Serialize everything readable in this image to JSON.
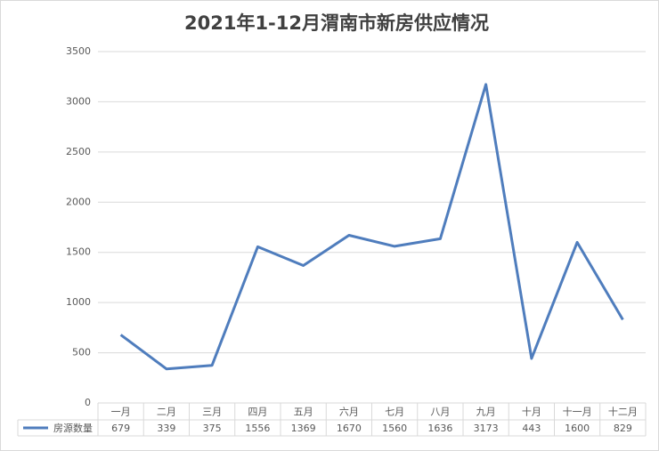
{
  "chart_data": {
    "type": "line",
    "title": "2021年1-12月渭南市新房供应情况",
    "categories": [
      "一月",
      "二月",
      "三月",
      "四月",
      "五月",
      "六月",
      "七月",
      "八月",
      "九月",
      "十月",
      "十一月",
      "十二月"
    ],
    "series": [
      {
        "name": "房源数量",
        "color": "#4f7dbd",
        "values": [
          679,
          339,
          375,
          1556,
          1369,
          1670,
          1560,
          1636,
          3173,
          443,
          1600,
          829
        ]
      }
    ],
    "ylim": [
      0,
      3500
    ],
    "yticks": [
      0,
      500,
      1000,
      1500,
      2000,
      2500,
      3000,
      3500
    ],
    "grid": true,
    "data_table": true
  }
}
